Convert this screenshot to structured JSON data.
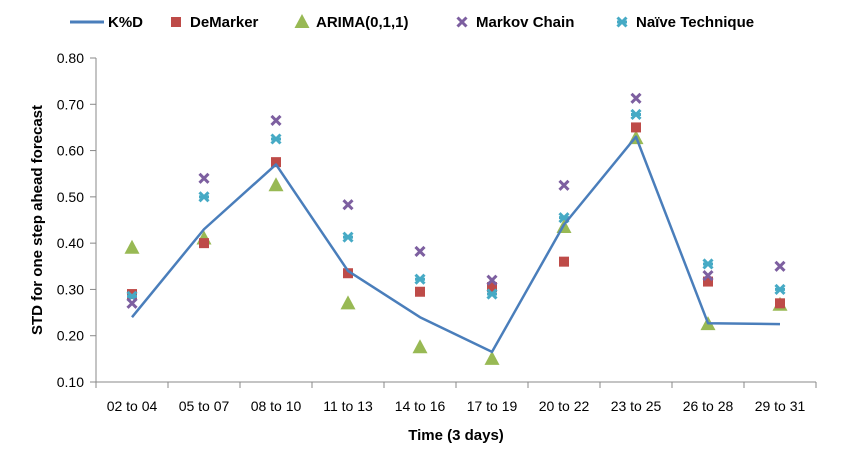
{
  "chart_data": {
    "type": "line",
    "title": "",
    "xlabel": "Time (3 days)",
    "ylabel": "STD for one step ahead forecast",
    "ylim": [
      0.1,
      0.8
    ],
    "yticks": [
      "0.10",
      "0.20",
      "0.30",
      "0.40",
      "0.50",
      "0.60",
      "0.70",
      "0.80"
    ],
    "categories": [
      "02 to 04",
      "05 to 07",
      "08 to 10",
      "11 to 13",
      "14 to 16",
      "17 to 19",
      "20 to 22",
      "23 to 25",
      "26 to 28",
      "29 to 31"
    ],
    "grid": false,
    "legend_position": "top",
    "series": [
      {
        "name": "K%D",
        "marker": "line",
        "color": "#4a7ebb",
        "values": [
          0.24,
          0.43,
          0.57,
          0.34,
          0.24,
          0.165,
          0.44,
          0.63,
          0.227,
          0.225
        ]
      },
      {
        "name": "DeMarker",
        "marker": "square",
        "color": "#be4b48",
        "values": [
          0.29,
          0.4,
          0.575,
          0.335,
          0.295,
          0.305,
          0.36,
          0.65,
          0.317,
          0.27
        ]
      },
      {
        "name": "ARIMA(0,1,1)",
        "marker": "triangle",
        "color": "#98b954",
        "values": [
          0.39,
          0.41,
          0.525,
          0.27,
          0.175,
          0.15,
          0.435,
          0.627,
          0.225,
          0.267
        ]
      },
      {
        "name": "Markov Chain",
        "marker": "x",
        "color": "#7d5fa0",
        "values": [
          0.27,
          0.54,
          0.665,
          0.483,
          0.382,
          0.32,
          0.525,
          0.713,
          0.33,
          0.35
        ]
      },
      {
        "name": "Naïve Technique",
        "marker": "star",
        "color": "#46aac5",
        "values": [
          0.285,
          0.5,
          0.625,
          0.413,
          0.322,
          0.29,
          0.455,
          0.678,
          0.355,
          0.3
        ]
      }
    ]
  }
}
